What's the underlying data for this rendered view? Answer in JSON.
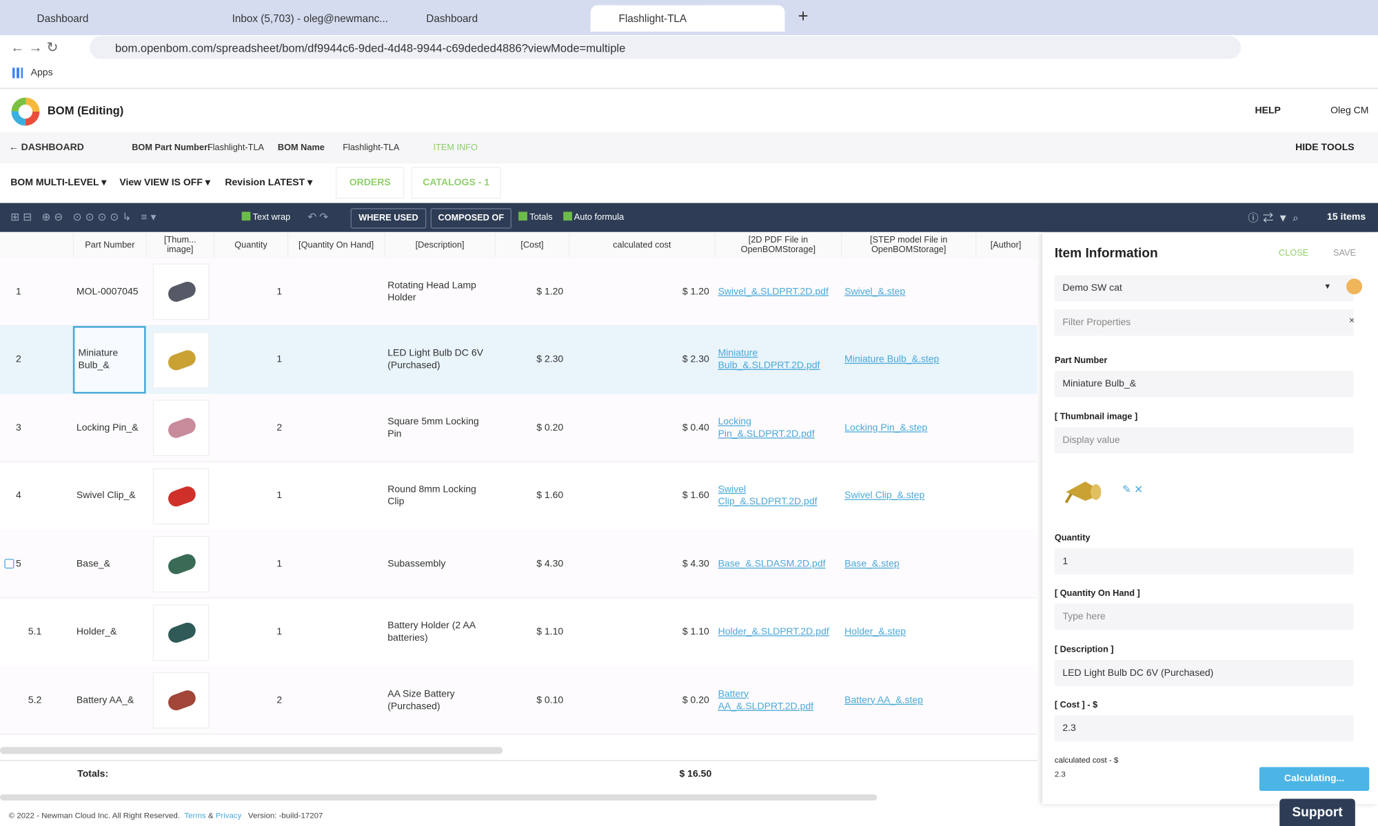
{
  "browser": {
    "tabs": [
      "Dashboard",
      "Inbox (5,703) - oleg@newmanc...",
      "Dashboard",
      "Flashlight-TLA"
    ],
    "url": "bom.openbom.com/spreadsheet/bom/df9944c6-9ded-4d48-9944-c69deded4886?viewMode=multiple",
    "bookmarks": "Apps"
  },
  "header": {
    "title": "BOM (Editing)",
    "help": "HELP",
    "user": "Oleg CM"
  },
  "toolbar1": {
    "dashboard": "DASHBOARD",
    "part_number_label": "BOM Part Number:",
    "part_number": "Flashlight-TLA",
    "name_label": "BOM Name",
    "name": "Flashlight-TLA",
    "item_info": "ITEM INFO",
    "hide_tools": "HIDE TOOLS"
  },
  "toolbar2": {
    "bom": "BOM",
    "bom_value": "MULTI-LEVEL",
    "view": "View",
    "view_value": "VIEW IS OFF",
    "revision": "Revision",
    "revision_value": "LATEST",
    "orders": "ORDERS",
    "catalogs": "CATALOGS - 1"
  },
  "toolbar3": {
    "text_wrap": "Text wrap",
    "where_used": "WHERE USED",
    "composed_of": "COMPOSED OF",
    "totals": "Totals",
    "auto_formula": "Auto formula",
    "items": "15 items"
  },
  "table": {
    "columns": [
      "Part Number",
      "[Thum... image]",
      "Quantity",
      "[Quantity On Hand]",
      "[Description]",
      "[Cost]",
      "calculated cost",
      "[2D PDF File in OpenBOMStorage]",
      "[STEP model File in OpenBOMStorage]",
      "[Author]"
    ],
    "rows": [
      {
        "num": "1",
        "part": "MOL-0007045",
        "qty": "1",
        "desc": "Rotating Head Lamp Holder",
        "cost": "$ 1.20",
        "calc": "$ 1.20",
        "pdf": "Swivel_&.SLDPRT.2D.pdf",
        "step": "Swivel_&.step"
      },
      {
        "num": "2",
        "part": "Miniature Bulb_&",
        "qty": "1",
        "desc": "LED Light Bulb DC 6V (Purchased)",
        "cost": "$ 2.30",
        "calc": "$ 2.30",
        "pdf": "Miniature Bulb_&.SLDPRT.2D.pdf",
        "step": "Miniature Bulb_&.step"
      },
      {
        "num": "3",
        "part": "Locking Pin_&",
        "qty": "2",
        "desc": "Square 5mm Locking Pin",
        "cost": "$ 0.20",
        "calc": "$ 0.40",
        "pdf": "Locking Pin_&.SLDPRT.2D.pdf",
        "step": "Locking Pin_&.step"
      },
      {
        "num": "4",
        "part": "Swivel Clip_&",
        "qty": "1",
        "desc": "Round 8mm Locking Clip",
        "cost": "$ 1.60",
        "calc": "$ 1.60",
        "pdf": "Swivel Clip_&.SLDPRT.2D.pdf",
        "step": "Swivel Clip_&.step"
      },
      {
        "num": "5",
        "part": "Base_&",
        "qty": "1",
        "desc": "Subassembly",
        "cost": "$ 4.30",
        "calc": "$ 4.30",
        "pdf": "Base_&.SLDASM.2D.pdf",
        "step": "Base_&.step"
      },
      {
        "num": "5.1",
        "part": "Holder_&",
        "qty": "1",
        "desc": "Battery Holder (2 AA batteries)",
        "cost": "$ 1.10",
        "calc": "$ 1.10",
        "pdf": "Holder_&.SLDPRT.2D.pdf",
        "step": "Holder_&.step"
      },
      {
        "num": "5.2",
        "part": "Battery AA_&",
        "qty": "2",
        "desc": "AA Size Battery (Purchased)",
        "cost": "$ 0.10",
        "calc": "$ 0.20",
        "pdf": "Battery AA_&.SLDPRT.2D.pdf",
        "step": "Battery AA_&.step"
      }
    ],
    "totals_label": "Totals:",
    "total": "$ 16.50"
  },
  "panel": {
    "title": "Item Information",
    "close": "CLOSE",
    "save": "SAVE",
    "catalog": "Demo SW cat",
    "filter": "Filter Properties",
    "fields": [
      {
        "label": "Part Number",
        "value": "Miniature Bulb_&"
      },
      {
        "label": "[ Thumbnail image ]",
        "placeholder": "Display value"
      },
      {
        "label": "Quantity",
        "value": "1"
      },
      {
        "label": "[ Quantity On Hand ]",
        "placeholder": "Type here"
      },
      {
        "label": "[ Description ]",
        "value": "LED Light Bulb DC 6V (Purchased)"
      },
      {
        "label": "[ Cost ] - $",
        "value": "2.3"
      },
      {
        "label": "calculated cost - $",
        "value": "2.3"
      }
    ],
    "calculating": "Calculating...",
    "support": "Support"
  },
  "footer": {
    "copyright": "© 2022 - Newman Cloud Inc. All Right Reserved.",
    "terms": "Terms",
    "amp": "&",
    "privacy": "Privacy",
    "version": "Version: -build-17207"
  }
}
